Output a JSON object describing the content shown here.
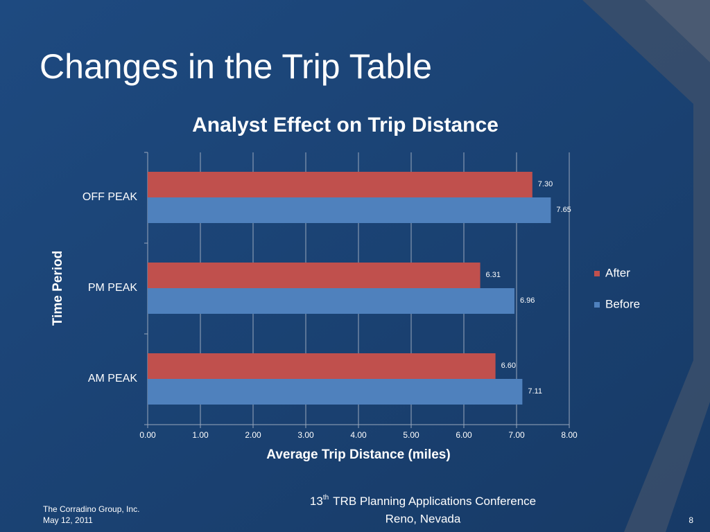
{
  "slide": {
    "title": "Changes in the Trip Table"
  },
  "footer": {
    "company": "The Corradino Group, Inc.",
    "date": "May 12, 2011",
    "conference_number": "13",
    "conference_suffix": "th",
    "conference_name": "TRB Planning Applications Conference",
    "location": "Reno, Nevada",
    "page": "8"
  },
  "chart_data": {
    "type": "bar",
    "horizontal": true,
    "title": "Analyst Effect on Trip Distance",
    "x_label": "Average Trip Distance (miles)",
    "y_label": "Time Period",
    "categories": [
      "OFF PEAK",
      "PM PEAK",
      "AM PEAK"
    ],
    "series": [
      {
        "name": "After",
        "color": "#c0504d",
        "values": [
          7.3,
          6.31,
          6.6
        ],
        "value_labels": [
          "7.30",
          "6.31",
          "6.60"
        ]
      },
      {
        "name": "Before",
        "color": "#4f81bd",
        "values": [
          7.65,
          6.96,
          7.11
        ],
        "value_labels": [
          "7.65",
          "6.96",
          "7.11"
        ]
      }
    ],
    "xlim": [
      0,
      8
    ],
    "xticks": [
      {
        "value": 0,
        "label": "0.00"
      },
      {
        "value": 1,
        "label": "1.00"
      },
      {
        "value": 2,
        "label": "2.00"
      },
      {
        "value": 3,
        "label": "3.00"
      },
      {
        "value": 4,
        "label": "4.00"
      },
      {
        "value": 5,
        "label": "5.00"
      },
      {
        "value": 6,
        "label": "6.00"
      },
      {
        "value": 7,
        "label": "7.00"
      },
      {
        "value": 8,
        "label": "8.00"
      }
    ],
    "grid": true,
    "legend": "right"
  }
}
